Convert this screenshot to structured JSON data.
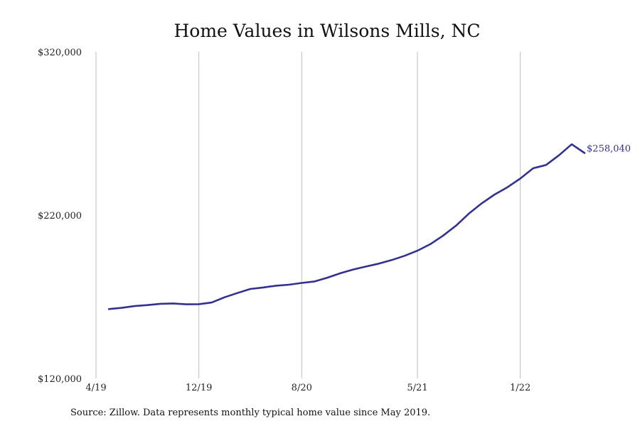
{
  "chart_data": {
    "type": "line",
    "title": "Home Values in Wilsons Mills, NC",
    "xlabel": "",
    "ylabel": "",
    "ylim": [
      120000,
      320000
    ],
    "yticks": [
      {
        "value": 120000,
        "label": "$120,000"
      },
      {
        "value": 220000,
        "label": "$220,000"
      },
      {
        "value": 320000,
        "label": "$320,000"
      }
    ],
    "xticks": [
      {
        "date": "2019-04",
        "label": "4/19"
      },
      {
        "date": "2019-12",
        "label": "12/19"
      },
      {
        "date": "2020-08",
        "label": "8/20"
      },
      {
        "date": "2021-05",
        "label": "5/21"
      },
      {
        "date": "2022-01",
        "label": "1/22"
      }
    ],
    "grid": "vertical",
    "line_color": "#33318f",
    "x": [
      "2019-05",
      "2019-06",
      "2019-07",
      "2019-08",
      "2019-09",
      "2019-10",
      "2019-11",
      "2019-12",
      "2020-01",
      "2020-02",
      "2020-03",
      "2020-04",
      "2020-05",
      "2020-06",
      "2020-07",
      "2020-08",
      "2020-09",
      "2020-10",
      "2020-11",
      "2020-12",
      "2021-01",
      "2021-02",
      "2021-03",
      "2021-04",
      "2021-05",
      "2021-06",
      "2021-07",
      "2021-08",
      "2021-09",
      "2021-10",
      "2021-11",
      "2021-12",
      "2022-01",
      "2022-02",
      "2022-03",
      "2022-04",
      "2022-05",
      "2022-06"
    ],
    "series": [
      {
        "values": [
          162500,
          163200,
          164300,
          164900,
          165700,
          165900,
          165400,
          165500,
          166500,
          169700,
          172300,
          174800,
          175700,
          176800,
          177400,
          178500,
          179400,
          181700,
          184400,
          186700,
          188500,
          190300,
          192500,
          195100,
          198200,
          202200,
          207500,
          213500,
          220900,
          227200,
          232600,
          237100,
          242400,
          248700,
          250700,
          256600,
          263400,
          258040
        ]
      }
    ],
    "end_label": "$258,040"
  },
  "source_note": "Source: Zillow. Data represents monthly typical home value since May 2019."
}
